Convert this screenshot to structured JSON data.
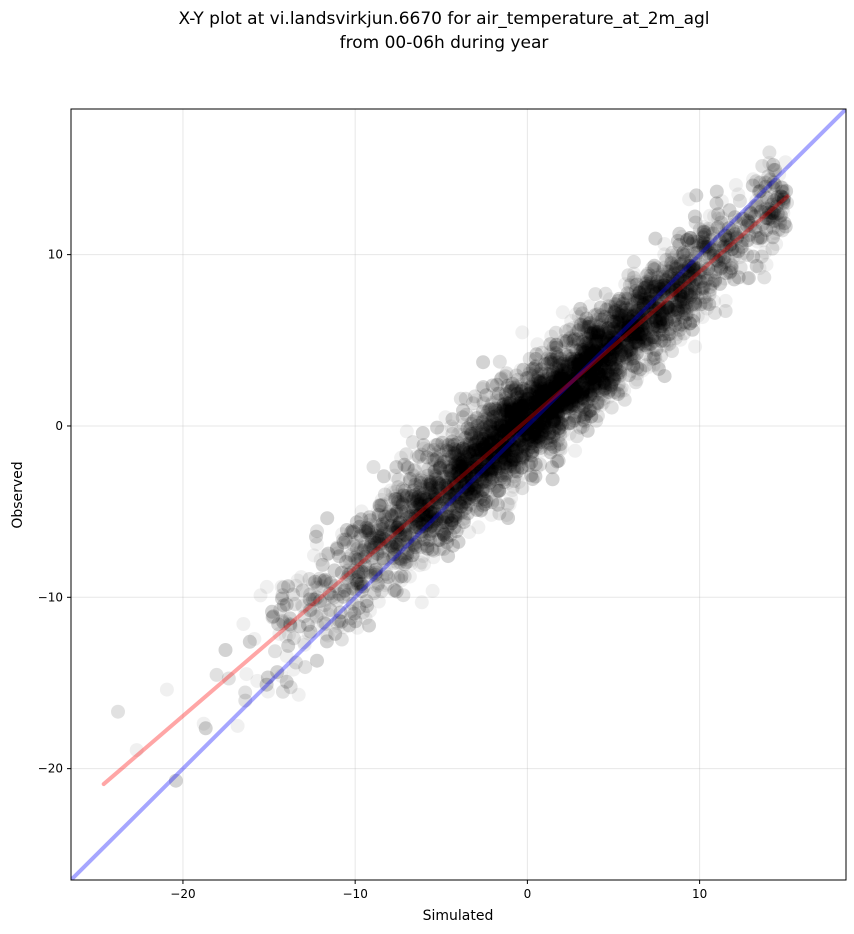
{
  "chart_data": {
    "type": "scatter",
    "title_lines": [
      "X-Y plot at vi.landsvirkjun.6670 for air_temperature_at_2m_agl",
      "from 00-06h during year"
    ],
    "xlabel": "Simulated",
    "ylabel": "Observed",
    "xlim": [
      -26.5,
      18.5
    ],
    "ylim": [
      -26.5,
      18.5
    ],
    "xticks": [
      -20,
      -10,
      0,
      10
    ],
    "yticks": [
      -20,
      -10,
      0,
      10
    ],
    "xtick_labels": [
      "−20",
      "−10",
      "0",
      "10"
    ],
    "ytick_labels": [
      "−20",
      "−10",
      "0",
      "10"
    ],
    "grid": true,
    "point_color": "#000000",
    "point_alpha": 0.06,
    "point_count": 8000,
    "sim_range": [
      -24.6,
      15.1
    ],
    "identity_line": {
      "color": "#0000ff",
      "x": [
        -26.5,
        18.5
      ],
      "y": [
        -26.5,
        18.5
      ]
    },
    "fit_line": {
      "color": "#ff0000",
      "x": [
        -24.6,
        15.1
      ],
      "y": [
        -20.9,
        13.4
      ]
    }
  }
}
